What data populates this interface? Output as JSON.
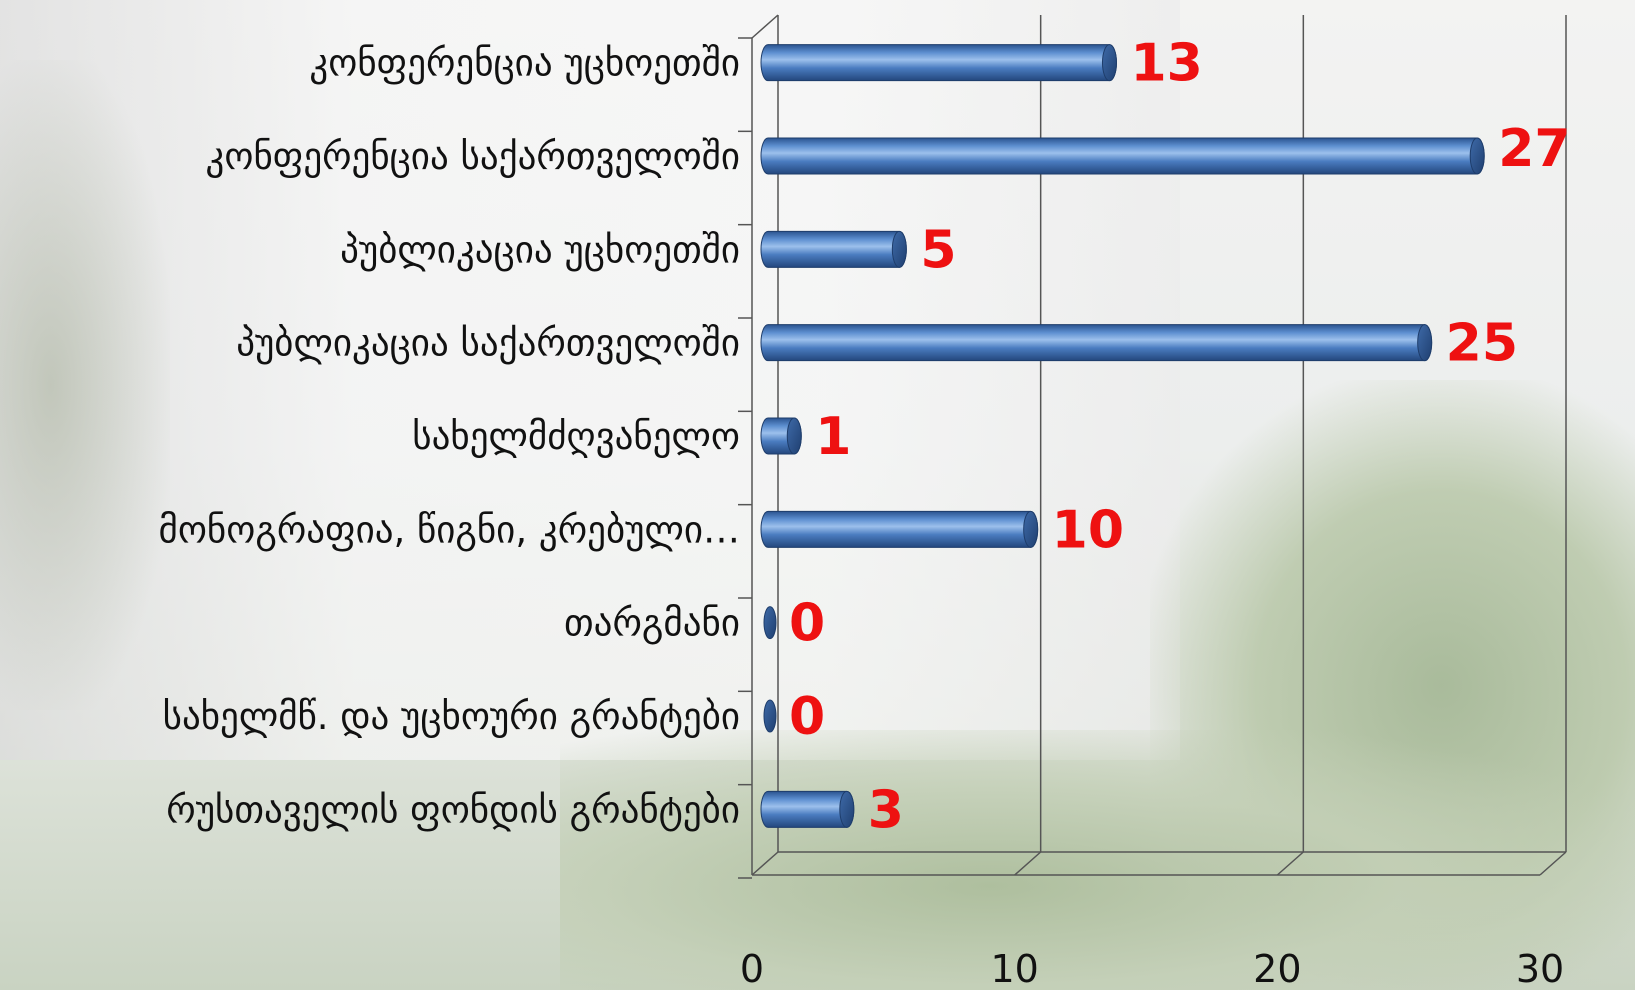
{
  "chart_data": {
    "type": "bar",
    "orientation": "horizontal",
    "style": "3d-cylinder",
    "categories": [
      "კონფერენცია უცხოეთში",
      "კონფერენცია საქართველოში",
      "პუბლიკაცია უცხოეთში",
      "პუბლიკაცია საქართველოში",
      "სახელმძღვანელო",
      "მონოგრაფია, წიგნი, კრებული…",
      "თარგმანი",
      "სახელმწ. და უცხოური გრანტები",
      "რუსთაველის ფონდის გრანტები"
    ],
    "values": [
      13,
      27,
      5,
      25,
      1,
      10,
      0,
      0,
      3
    ],
    "value_labels": [
      "13",
      "27",
      "5",
      "25",
      "1",
      "10",
      "0",
      "0",
      "3"
    ],
    "xlim": [
      0,
      30
    ],
    "x_ticks": [
      "0",
      "10",
      "20",
      "30"
    ],
    "grid": true,
    "legend": "none",
    "colors": {
      "bar": "#4a7cc0",
      "bar_dark": "#2a538f",
      "bar_light": "#9cc0ec",
      "value_label": "#ee1111",
      "gridline": "#555555"
    }
  }
}
